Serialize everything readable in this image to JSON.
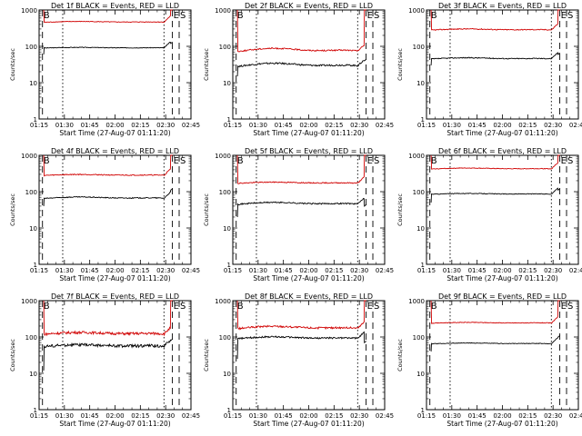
{
  "figure": {
    "background": "#ffffff",
    "events_color": "#000000",
    "lld_color": "#d00000"
  },
  "chart_data": [
    {
      "type": "line",
      "title": "Det 1f BLACK = Events, RED = LLD",
      "xlabel": "Start Time (27-Aug-07 01:11:20)",
      "ylabel": "Counts/sec",
      "yscale": "log",
      "ylim": [
        1,
        1000
      ],
      "xlim": [
        "01:15",
        "02:45"
      ],
      "x_ticks": [
        "01:15",
        "01:30",
        "01:45",
        "02:00",
        "02:15",
        "02:30",
        "02:45"
      ],
      "y_ticks": [
        "1",
        "10",
        "100",
        "1000"
      ],
      "markers": [
        {
          "label": "B",
          "time": "01:17",
          "style": "dashed"
        },
        {
          "label": "",
          "time": "01:29",
          "style": "dotted"
        },
        {
          "label": "",
          "time": "02:29",
          "style": "dotted"
        },
        {
          "label": "E",
          "time": "02:34",
          "style": "dashed"
        },
        {
          "label": "S",
          "time": "02:38",
          "style": "dashed"
        }
      ],
      "series": [
        {
          "name": "Events",
          "color": "#000000",
          "profile": {
            "start": "01:18",
            "end": "02:33",
            "level": 90,
            "amp": 0.06,
            "pre": 60,
            "post": 120,
            "jitter": 0.02
          }
        },
        {
          "name": "LLD",
          "color": "#d00000",
          "profile": {
            "start": "01:18",
            "end": "02:33",
            "level": 460,
            "amp": 0.08,
            "pre": 1100,
            "post": 1300,
            "jitter": 0.02
          }
        }
      ]
    },
    {
      "type": "line",
      "title": "Det 2f BLACK = Events, RED = LLD",
      "xlabel": "Start Time (27-Aug-07 01:11:20)",
      "ylabel": "Counts/sec",
      "yscale": "log",
      "ylim": [
        1,
        1000
      ],
      "xlim": [
        "01:15",
        "02:45"
      ],
      "x_ticks": [
        "01:15",
        "01:30",
        "01:45",
        "02:00",
        "02:15",
        "02:30",
        "02:45"
      ],
      "y_ticks": [
        "1",
        "10",
        "100",
        "1000"
      ],
      "markers": [
        {
          "label": "B",
          "time": "01:17",
          "style": "dashed"
        },
        {
          "label": "",
          "time": "01:29",
          "style": "dotted"
        },
        {
          "label": "",
          "time": "02:29",
          "style": "dotted"
        },
        {
          "label": "E",
          "time": "02:34",
          "style": "dashed"
        },
        {
          "label": "S",
          "time": "02:38",
          "style": "dashed"
        }
      ],
      "series": [
        {
          "name": "Events",
          "color": "#000000",
          "profile": {
            "start": "01:18",
            "end": "02:33",
            "level": 28,
            "amp": 0.35,
            "pre": 15,
            "post": 40,
            "jitter": 0.05
          }
        },
        {
          "name": "LLD",
          "color": "#d00000",
          "profile": {
            "start": "01:18",
            "end": "02:33",
            "level": 72,
            "amp": 0.35,
            "pre": 1100,
            "post": 1300,
            "jitter": 0.04
          }
        }
      ]
    },
    {
      "type": "line",
      "title": "Det 3f BLACK = Events, RED = LLD",
      "xlabel": "Start Time (27-Aug-07 01:11:20)",
      "ylabel": "Counts/sec",
      "yscale": "log",
      "ylim": [
        1,
        1000
      ],
      "xlim": [
        "01:15",
        "02:45"
      ],
      "x_ticks": [
        "01:15",
        "01:30",
        "01:45",
        "02:00",
        "02:15",
        "02:30",
        "02:45"
      ],
      "y_ticks": [
        "1",
        "10",
        "100",
        "1000"
      ],
      "markers": [
        {
          "label": "B",
          "time": "01:17",
          "style": "dashed"
        },
        {
          "label": "",
          "time": "01:29",
          "style": "dotted"
        },
        {
          "label": "",
          "time": "02:29",
          "style": "dotted"
        },
        {
          "label": "E",
          "time": "02:34",
          "style": "dashed"
        },
        {
          "label": "S",
          "time": "02:38",
          "style": "dashed"
        }
      ],
      "series": [
        {
          "name": "Events",
          "color": "#000000",
          "profile": {
            "start": "01:18",
            "end": "02:33",
            "level": 45,
            "amp": 0.12,
            "pre": 30,
            "post": 60,
            "jitter": 0.03
          }
        },
        {
          "name": "LLD",
          "color": "#d00000",
          "profile": {
            "start": "01:18",
            "end": "02:33",
            "level": 280,
            "amp": 0.12,
            "pre": 1100,
            "post": 1300,
            "jitter": 0.03
          }
        }
      ]
    },
    {
      "type": "line",
      "title": "Det 4f BLACK = Events, RED = LLD",
      "xlabel": "Start Time (27-Aug-07 01:11:20)",
      "ylabel": "Counts/sec",
      "yscale": "log",
      "ylim": [
        1,
        1000
      ],
      "xlim": [
        "01:15",
        "02:45"
      ],
      "x_ticks": [
        "01:15",
        "01:30",
        "01:45",
        "02:00",
        "02:15",
        "02:30",
        "02:45"
      ],
      "y_ticks": [
        "1",
        "10",
        "100",
        "1000"
      ],
      "markers": [
        {
          "label": "B",
          "time": "01:17",
          "style": "dashed"
        },
        {
          "label": "",
          "time": "01:29",
          "style": "dotted"
        },
        {
          "label": "",
          "time": "02:29",
          "style": "dotted"
        },
        {
          "label": "E",
          "time": "02:34",
          "style": "dashed"
        },
        {
          "label": "S",
          "time": "02:38",
          "style": "dashed"
        }
      ],
      "series": [
        {
          "name": "Events",
          "color": "#000000",
          "profile": {
            "start": "01:18",
            "end": "02:33",
            "level": 65,
            "amp": 0.15,
            "pre": 40,
            "post": 110,
            "jitter": 0.03
          }
        },
        {
          "name": "LLD",
          "color": "#d00000",
          "profile": {
            "start": "01:18",
            "end": "02:33",
            "level": 280,
            "amp": 0.1,
            "pre": 1100,
            "post": 1300,
            "jitter": 0.03
          }
        }
      ]
    },
    {
      "type": "line",
      "title": "Det 5f BLACK = Events, RED = LLD",
      "xlabel": "Start Time (27-Aug-07 01:11:20)",
      "ylabel": "Counts/sec",
      "yscale": "log",
      "ylim": [
        1,
        1000
      ],
      "xlim": [
        "01:15",
        "02:45"
      ],
      "x_ticks": [
        "01:15",
        "01:30",
        "01:45",
        "02:00",
        "02:15",
        "02:30",
        "02:45"
      ],
      "y_ticks": [
        "1",
        "10",
        "100",
        "1000"
      ],
      "markers": [
        {
          "label": "B",
          "time": "01:17",
          "style": "dashed"
        },
        {
          "label": "",
          "time": "01:29",
          "style": "dotted"
        },
        {
          "label": "",
          "time": "02:29",
          "style": "dotted"
        },
        {
          "label": "E",
          "time": "02:34",
          "style": "dashed"
        },
        {
          "label": "S",
          "time": "02:38",
          "style": "dashed"
        }
      ],
      "series": [
        {
          "name": "Events",
          "color": "#000000",
          "profile": {
            "start": "01:18",
            "end": "02:33",
            "level": 45,
            "amp": 0.2,
            "pre": 20,
            "post": 40,
            "jitter": 0.04
          }
        },
        {
          "name": "LLD",
          "color": "#d00000",
          "profile": {
            "start": "01:18",
            "end": "02:33",
            "level": 170,
            "amp": 0.12,
            "pre": 1100,
            "post": 1300,
            "jitter": 0.03
          }
        }
      ]
    },
    {
      "type": "line",
      "title": "Det 6f BLACK = Events, RED = LLD",
      "xlabel": "Start Time (27-Aug-07 01:11:20)",
      "ylabel": "Counts/sec",
      "yscale": "log",
      "ylim": [
        1,
        1000
      ],
      "xlim": [
        "01:15",
        "02:45"
      ],
      "x_ticks": [
        "01:15",
        "01:30",
        "01:45",
        "02:00",
        "02:15",
        "02:30",
        "02:45"
      ],
      "y_ticks": [
        "1",
        "10",
        "100",
        "1000"
      ],
      "markers": [
        {
          "label": "B",
          "time": "01:17",
          "style": "dashed"
        },
        {
          "label": "",
          "time": "01:29",
          "style": "dotted"
        },
        {
          "label": "",
          "time": "02:29",
          "style": "dotted"
        },
        {
          "label": "E",
          "time": "02:34",
          "style": "dashed"
        },
        {
          "label": "S",
          "time": "02:38",
          "style": "dashed"
        }
      ],
      "series": [
        {
          "name": "Events",
          "color": "#000000",
          "profile": {
            "start": "01:18",
            "end": "02:33",
            "level": 85,
            "amp": 0.08,
            "pre": 50,
            "post": 110,
            "jitter": 0.02
          }
        },
        {
          "name": "LLD",
          "color": "#d00000",
          "profile": {
            "start": "01:18",
            "end": "02:33",
            "level": 420,
            "amp": 0.1,
            "pre": 1100,
            "post": 1300,
            "jitter": 0.02
          }
        }
      ]
    },
    {
      "type": "line",
      "title": "Det 7f BLACK = Events, RED = LLD",
      "xlabel": "Start Time (27-Aug-07 01:11:20)",
      "ylabel": "Counts/sec",
      "yscale": "log",
      "ylim": [
        1,
        1000
      ],
      "xlim": [
        "01:15",
        "02:45"
      ],
      "x_ticks": [
        "01:15",
        "01:30",
        "01:45",
        "02:00",
        "02:15",
        "02:30",
        "02:45"
      ],
      "y_ticks": [
        "1",
        "10",
        "100",
        "1000"
      ],
      "markers": [
        {
          "label": "B",
          "time": "01:17",
          "style": "dashed"
        },
        {
          "label": "",
          "time": "01:29",
          "style": "dotted"
        },
        {
          "label": "",
          "time": "02:29",
          "style": "dotted"
        },
        {
          "label": "E",
          "time": "02:34",
          "style": "dashed"
        },
        {
          "label": "S",
          "time": "02:38",
          "style": "dashed"
        }
      ],
      "series": [
        {
          "name": "Events",
          "color": "#000000",
          "profile": {
            "start": "01:18",
            "end": "02:33",
            "level": 55,
            "amp": 0.18,
            "pre": 12,
            "post": 80,
            "jitter": 0.09
          }
        },
        {
          "name": "LLD",
          "color": "#d00000",
          "profile": {
            "start": "01:18",
            "end": "02:33",
            "level": 120,
            "amp": 0.18,
            "pre": 1100,
            "post": 1300,
            "jitter": 0.08
          }
        }
      ]
    },
    {
      "type": "line",
      "title": "Det 8f BLACK = Events, RED = LLD",
      "xlabel": "Start Time (27-Aug-07 01:11:20)",
      "ylabel": "Counts/sec",
      "yscale": "log",
      "ylim": [
        1,
        1000
      ],
      "xlim": [
        "01:15",
        "02:45"
      ],
      "x_ticks": [
        "01:15",
        "01:30",
        "01:45",
        "02:00",
        "02:15",
        "02:30",
        "02:45"
      ],
      "y_ticks": [
        "1",
        "10",
        "100",
        "1000"
      ],
      "markers": [
        {
          "label": "B",
          "time": "01:17",
          "style": "dashed"
        },
        {
          "label": "",
          "time": "01:29",
          "style": "dotted"
        },
        {
          "label": "",
          "time": "02:29",
          "style": "dotted"
        },
        {
          "label": "E",
          "time": "02:34",
          "style": "dashed"
        },
        {
          "label": "S",
          "time": "02:38",
          "style": "dashed"
        }
      ],
      "series": [
        {
          "name": "Events",
          "color": "#000000",
          "profile": {
            "start": "01:18",
            "end": "02:33",
            "level": 90,
            "amp": 0.2,
            "pre": 25,
            "post": 70,
            "jitter": 0.05
          }
        },
        {
          "name": "LLD",
          "color": "#d00000",
          "profile": {
            "start": "01:18",
            "end": "02:33",
            "level": 170,
            "amp": 0.25,
            "pre": 1100,
            "post": 1300,
            "jitter": 0.06
          }
        }
      ]
    },
    {
      "type": "line",
      "title": "Det 9f BLACK = Events, RED = LLD",
      "xlabel": "Start Time (27-Aug-07 01:11:20)",
      "ylabel": "Counts/sec",
      "yscale": "log",
      "ylim": [
        1,
        1000
      ],
      "xlim": [
        "01:15",
        "02:45"
      ],
      "x_ticks": [
        "01:15",
        "01:30",
        "01:45",
        "02:00",
        "02:15",
        "02:30",
        "02:45"
      ],
      "y_ticks": [
        "1",
        "10",
        "100",
        "1000"
      ],
      "markers": [
        {
          "label": "B",
          "time": "01:17",
          "style": "dashed"
        },
        {
          "label": "",
          "time": "01:29",
          "style": "dotted"
        },
        {
          "label": "",
          "time": "02:29",
          "style": "dotted"
        },
        {
          "label": "E",
          "time": "02:34",
          "style": "dashed"
        },
        {
          "label": "S",
          "time": "02:38",
          "style": "dashed"
        }
      ],
      "series": [
        {
          "name": "Events",
          "color": "#000000",
          "profile": {
            "start": "01:18",
            "end": "02:33",
            "level": 65,
            "amp": 0.08,
            "pre": 40,
            "post": 100,
            "jitter": 0.02
          }
        },
        {
          "name": "LLD",
          "color": "#d00000",
          "profile": {
            "start": "01:18",
            "end": "02:33",
            "level": 240,
            "amp": 0.08,
            "pre": 1100,
            "post": 1300,
            "jitter": 0.02
          }
        }
      ]
    }
  ]
}
